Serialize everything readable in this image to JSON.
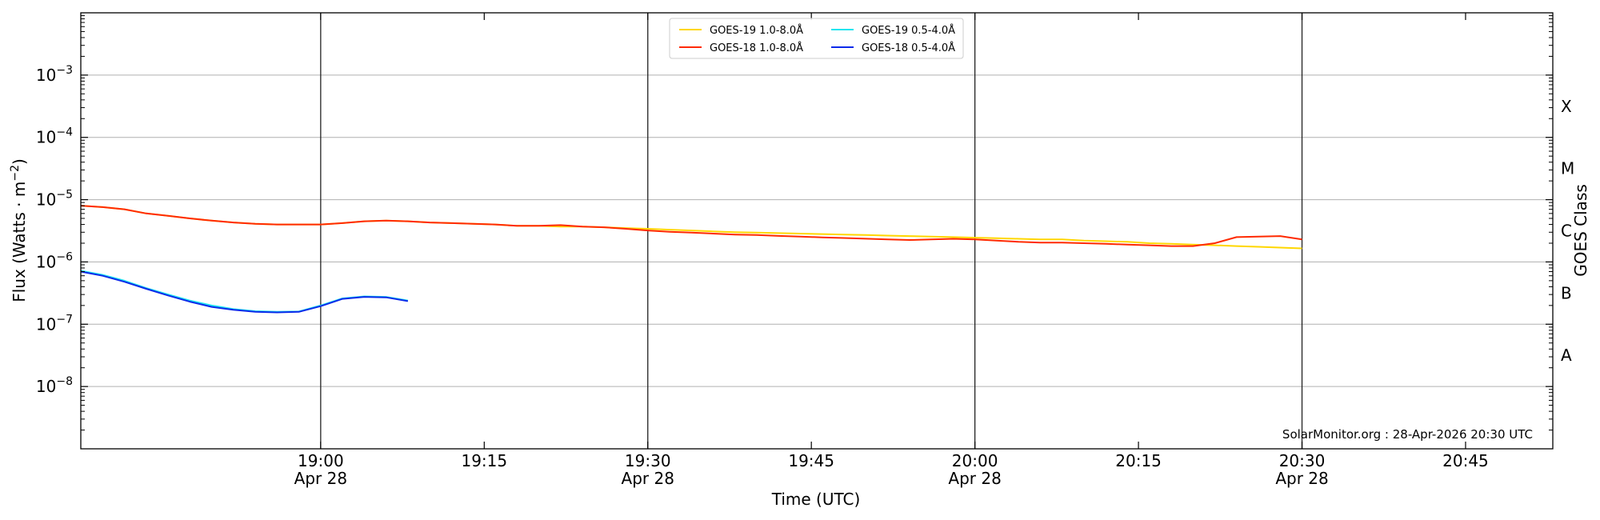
{
  "chart_data": {
    "type": "line",
    "xlabel": "Time (UTC)",
    "ylabel_prefix": "Flux (Watts · m",
    "ylabel_sup": "−2",
    "ylabel_suffix": ")",
    "right_label": "GOES Class",
    "credit": "SolarMonitor.org : 28-Apr-2026 20:30 UTC",
    "x_start": "18:38",
    "x_end": "20:53",
    "y_log_range": [
      -9,
      -2
    ],
    "log_scale_y": true,
    "grid": "horizontal",
    "legend_position": "top-center",
    "x_ticks": [
      {
        "time": "19:00",
        "label": "19:00",
        "sublabel": "Apr 28",
        "vline": true
      },
      {
        "time": "19:15",
        "label": "19:15",
        "sublabel": "",
        "vline": false
      },
      {
        "time": "19:30",
        "label": "19:30",
        "sublabel": "Apr 28",
        "vline": true
      },
      {
        "time": "19:45",
        "label": "19:45",
        "sublabel": "",
        "vline": false
      },
      {
        "time": "20:00",
        "label": "20:00",
        "sublabel": "Apr 28",
        "vline": true
      },
      {
        "time": "20:15",
        "label": "20:15",
        "sublabel": "",
        "vline": false
      },
      {
        "time": "20:30",
        "label": "20:30",
        "sublabel": "Apr 28",
        "vline": true
      },
      {
        "time": "20:45",
        "label": "20:45",
        "sublabel": "",
        "vline": false
      }
    ],
    "y_ticks": [
      {
        "exp": -3,
        "base": "10",
        "sup": "−3"
      },
      {
        "exp": -4,
        "base": "10",
        "sup": "−4"
      },
      {
        "exp": -5,
        "base": "10",
        "sup": "−5"
      },
      {
        "exp": -6,
        "base": "10",
        "sup": "−6"
      },
      {
        "exp": -7,
        "base": "10",
        "sup": "−7"
      },
      {
        "exp": -8,
        "base": "10",
        "sup": "−8"
      }
    ],
    "goes_classes": [
      {
        "label": "X",
        "exp": -3.5
      },
      {
        "label": "M",
        "exp": -4.5
      },
      {
        "label": "C",
        "exp": -5.5
      },
      {
        "label": "B",
        "exp": -6.5
      },
      {
        "label": "A",
        "exp": -7.5
      }
    ],
    "series": [
      {
        "name": "GOES-19 1.0-8.0Å",
        "color": "#ffd700",
        "points": [
          [
            "18:38",
            8e-06
          ],
          [
            "18:40",
            7.6e-06
          ],
          [
            "18:42",
            7e-06
          ],
          [
            "18:44",
            6e-06
          ],
          [
            "18:46",
            5.5e-06
          ],
          [
            "18:48",
            5e-06
          ],
          [
            "18:50",
            4.6e-06
          ],
          [
            "18:52",
            4.3e-06
          ],
          [
            "18:54",
            4.1e-06
          ],
          [
            "18:56",
            4e-06
          ],
          [
            "18:58",
            4e-06
          ],
          [
            "19:00",
            4e-06
          ],
          [
            "19:02",
            4.2e-06
          ],
          [
            "19:04",
            4.5e-06
          ],
          [
            "19:06",
            4.6e-06
          ],
          [
            "19:08",
            4.5e-06
          ],
          [
            "19:10",
            4.3e-06
          ],
          [
            "19:12",
            4.2e-06
          ],
          [
            "19:14",
            4.1e-06
          ],
          [
            "19:16",
            4e-06
          ],
          [
            "19:18",
            3.8e-06
          ],
          [
            "19:20",
            3.8e-06
          ],
          [
            "19:22",
            3.7e-06
          ],
          [
            "19:24",
            3.7e-06
          ],
          [
            "19:26",
            3.6e-06
          ],
          [
            "19:28",
            3.5e-06
          ],
          [
            "19:30",
            3.4e-06
          ],
          [
            "19:32",
            3.3e-06
          ],
          [
            "19:34",
            3.2e-06
          ],
          [
            "19:36",
            3.1e-06
          ],
          [
            "19:38",
            3e-06
          ],
          [
            "19:40",
            2.95e-06
          ],
          [
            "19:42",
            2.9e-06
          ],
          [
            "19:44",
            2.85e-06
          ],
          [
            "19:46",
            2.8e-06
          ],
          [
            "19:48",
            2.75e-06
          ],
          [
            "19:50",
            2.7e-06
          ],
          [
            "19:52",
            2.65e-06
          ],
          [
            "19:54",
            2.6e-06
          ],
          [
            "19:56",
            2.55e-06
          ],
          [
            "19:58",
            2.5e-06
          ],
          [
            "20:00",
            2.45e-06
          ],
          [
            "20:02",
            2.4e-06
          ],
          [
            "20:04",
            2.35e-06
          ],
          [
            "20:06",
            2.3e-06
          ],
          [
            "20:08",
            2.3e-06
          ],
          [
            "20:10",
            2.2e-06
          ],
          [
            "20:12",
            2.15e-06
          ],
          [
            "20:14",
            2.1e-06
          ],
          [
            "20:16",
            2e-06
          ],
          [
            "20:18",
            1.95e-06
          ],
          [
            "20:20",
            1.9e-06
          ],
          [
            "20:22",
            1.85e-06
          ],
          [
            "20:24",
            1.8e-06
          ],
          [
            "20:26",
            1.75e-06
          ],
          [
            "20:28",
            1.7e-06
          ],
          [
            "20:30",
            1.65e-06
          ]
        ]
      },
      {
        "name": "GOES-18 1.0-8.0Å",
        "color": "#ff2a00",
        "points": [
          [
            "18:38",
            8e-06
          ],
          [
            "18:40",
            7.6e-06
          ],
          [
            "18:42",
            7e-06
          ],
          [
            "18:44",
            6e-06
          ],
          [
            "18:46",
            5.5e-06
          ],
          [
            "18:48",
            5e-06
          ],
          [
            "18:50",
            4.6e-06
          ],
          [
            "18:52",
            4.3e-06
          ],
          [
            "18:54",
            4.1e-06
          ],
          [
            "18:56",
            4e-06
          ],
          [
            "18:58",
            4e-06
          ],
          [
            "19:00",
            4e-06
          ],
          [
            "19:02",
            4.2e-06
          ],
          [
            "19:04",
            4.5e-06
          ],
          [
            "19:06",
            4.6e-06
          ],
          [
            "19:08",
            4.5e-06
          ],
          [
            "19:10",
            4.3e-06
          ],
          [
            "19:12",
            4.2e-06
          ],
          [
            "19:14",
            4.1e-06
          ],
          [
            "19:16",
            4e-06
          ],
          [
            "19:18",
            3.8e-06
          ],
          [
            "19:20",
            3.8e-06
          ],
          [
            "19:22",
            3.9e-06
          ],
          [
            "19:24",
            3.7e-06
          ],
          [
            "19:26",
            3.6e-06
          ],
          [
            "19:28",
            3.4e-06
          ],
          [
            "19:30",
            3.2e-06
          ],
          [
            "19:32",
            3.05e-06
          ],
          [
            "19:34",
            2.95e-06
          ],
          [
            "19:36",
            2.85e-06
          ],
          [
            "19:38",
            2.75e-06
          ],
          [
            "19:40",
            2.7e-06
          ],
          [
            "19:42",
            2.62e-06
          ],
          [
            "19:44",
            2.55e-06
          ],
          [
            "19:46",
            2.48e-06
          ],
          [
            "19:48",
            2.42e-06
          ],
          [
            "19:50",
            2.36e-06
          ],
          [
            "19:52",
            2.3e-06
          ],
          [
            "19:54",
            2.25e-06
          ],
          [
            "19:56",
            2.3e-06
          ],
          [
            "19:58",
            2.35e-06
          ],
          [
            "20:00",
            2.3e-06
          ],
          [
            "20:02",
            2.2e-06
          ],
          [
            "20:04",
            2.1e-06
          ],
          [
            "20:06",
            2.05e-06
          ],
          [
            "20:08",
            2.05e-06
          ],
          [
            "20:10",
            2e-06
          ],
          [
            "20:12",
            1.95e-06
          ],
          [
            "20:14",
            1.9e-06
          ],
          [
            "20:16",
            1.85e-06
          ],
          [
            "20:18",
            1.8e-06
          ],
          [
            "20:20",
            1.8e-06
          ],
          [
            "20:22",
            2e-06
          ],
          [
            "20:24",
            2.5e-06
          ],
          [
            "20:26",
            2.55e-06
          ],
          [
            "20:28",
            2.6e-06
          ],
          [
            "20:30",
            2.3e-06
          ]
        ]
      },
      {
        "name": "GOES-19 0.5-4.0Å",
        "color": "#1ee5f0",
        "points": [
          [
            "18:38",
            7.2e-07
          ],
          [
            "18:40",
            6.2e-07
          ],
          [
            "18:42",
            5e-07
          ],
          [
            "18:44",
            3.8e-07
          ],
          [
            "18:46",
            3e-07
          ],
          [
            "18:48",
            2.4e-07
          ],
          [
            "18:50",
            2e-07
          ],
          [
            "18:52",
            1.75e-07
          ],
          [
            "18:54",
            1.62e-07
          ],
          [
            "18:56",
            1.58e-07
          ],
          [
            "18:58",
            1.6e-07
          ],
          [
            "19:00",
            2e-07
          ],
          [
            "19:02",
            2.6e-07
          ],
          [
            "19:04",
            2.8e-07
          ],
          [
            "19:06",
            2.75e-07
          ],
          [
            "19:08",
            2.4e-07
          ]
        ]
      },
      {
        "name": "GOES-18 0.5-4.0Å",
        "color": "#0a2aea",
        "points": [
          [
            "18:38",
            7e-07
          ],
          [
            "18:40",
            6e-07
          ],
          [
            "18:42",
            4.8e-07
          ],
          [
            "18:44",
            3.7e-07
          ],
          [
            "18:46",
            2.9e-07
          ],
          [
            "18:48",
            2.3e-07
          ],
          [
            "18:50",
            1.9e-07
          ],
          [
            "18:52",
            1.7e-07
          ],
          [
            "18:54",
            1.58e-07
          ],
          [
            "18:56",
            1.55e-07
          ],
          [
            "18:58",
            1.58e-07
          ],
          [
            "19:00",
            1.95e-07
          ],
          [
            "19:02",
            2.55e-07
          ],
          [
            "19:04",
            2.75e-07
          ],
          [
            "19:06",
            2.7e-07
          ],
          [
            "19:08",
            2.35e-07
          ]
        ]
      }
    ]
  }
}
